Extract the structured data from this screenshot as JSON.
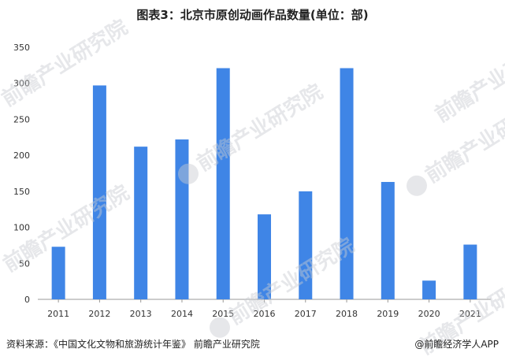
{
  "title": "图表3：北京市原创动画作品数量(单位：部)",
  "source": "资料来源：《中国文化文物和旅游统计年鉴》 前瞻产业研究院",
  "brand": "@前瞻经济学人APP",
  "watermark": "前瞻产业研究院",
  "colors": {
    "bar": "#3f85e6",
    "axis": "#999999",
    "text": "#333333"
  },
  "chart_data": {
    "type": "bar",
    "categories": [
      "2011",
      "2012",
      "2013",
      "2014",
      "2015",
      "2016",
      "2017",
      "2018",
      "2019",
      "2020",
      "2021"
    ],
    "values": [
      73,
      297,
      212,
      222,
      321,
      118,
      150,
      321,
      163,
      26,
      76
    ],
    "ylim": [
      0,
      350
    ],
    "yticks": [
      0,
      50,
      100,
      150,
      200,
      250,
      300,
      350
    ],
    "grid": false,
    "legend": "none"
  }
}
